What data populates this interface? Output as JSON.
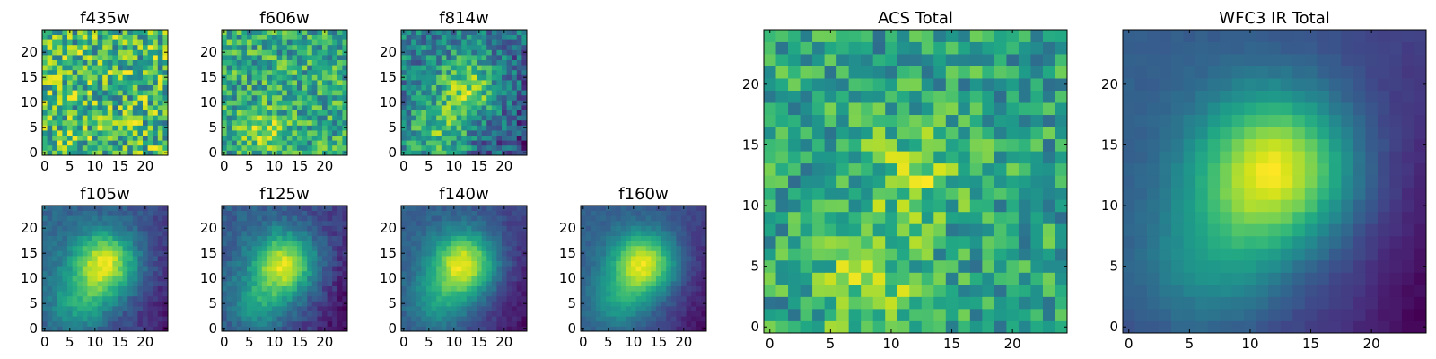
{
  "figure": {
    "colormap": "viridis",
    "grid": false
  },
  "chart_data": [
    {
      "type": "heatmap",
      "title": "f435w",
      "grid_size": 25,
      "xticks": [
        0,
        5,
        10,
        15,
        20
      ],
      "yticks": [
        0,
        5,
        10,
        15,
        20
      ],
      "xlim": [
        0,
        25
      ],
      "ylim": [
        0,
        25
      ],
      "style": "noise",
      "centers": [],
      "noise": 1.0
    },
    {
      "type": "heatmap",
      "title": "f606w",
      "grid_size": 25,
      "xticks": [
        0,
        5,
        10,
        15,
        20
      ],
      "yticks": [
        0,
        5,
        10,
        15,
        20
      ],
      "xlim": [
        0,
        25
      ],
      "ylim": [
        0,
        25
      ],
      "style": "noise",
      "centers": [
        [
          8,
          4,
          0.35
        ]
      ],
      "noise": 0.9
    },
    {
      "type": "heatmap",
      "title": "f814w",
      "grid_size": 25,
      "xticks": [
        0,
        5,
        10,
        15,
        20
      ],
      "yticks": [
        0,
        5,
        10,
        15,
        20
      ],
      "xlim": [
        0,
        25
      ],
      "ylim": [
        0,
        25
      ],
      "style": "blob",
      "centers": [
        [
          13,
          13,
          0.6
        ],
        [
          7,
          4,
          0.45
        ]
      ],
      "noise": 0.7
    },
    {
      "type": "heatmap",
      "title": "f105w",
      "grid_size": 25,
      "xticks": [
        0,
        5,
        10,
        15,
        20
      ],
      "yticks": [
        0,
        5,
        10,
        15,
        20
      ],
      "xlim": [
        0,
        25
      ],
      "ylim": [
        0,
        25
      ],
      "style": "blob",
      "centers": [
        [
          12,
          13,
          1.0
        ],
        [
          7,
          5,
          0.45
        ]
      ],
      "noise": 0.2
    },
    {
      "type": "heatmap",
      "title": "f125w",
      "grid_size": 25,
      "xticks": [
        0,
        5,
        10,
        15,
        20
      ],
      "yticks": [
        0,
        5,
        10,
        15,
        20
      ],
      "xlim": [
        0,
        25
      ],
      "ylim": [
        0,
        25
      ],
      "style": "blob",
      "centers": [
        [
          12,
          13,
          1.0
        ],
        [
          7,
          5,
          0.45
        ]
      ],
      "noise": 0.22
    },
    {
      "type": "heatmap",
      "title": "f140w",
      "grid_size": 25,
      "xticks": [
        0,
        5,
        10,
        15,
        20
      ],
      "yticks": [
        0,
        5,
        10,
        15,
        20
      ],
      "xlim": [
        0,
        25
      ],
      "ylim": [
        0,
        25
      ],
      "style": "blob",
      "centers": [
        [
          12,
          13,
          1.0
        ],
        [
          7,
          5,
          0.4
        ]
      ],
      "noise": 0.15
    },
    {
      "type": "heatmap",
      "title": "f160w",
      "grid_size": 25,
      "xticks": [
        0,
        5,
        10,
        15,
        20
      ],
      "yticks": [
        0,
        5,
        10,
        15,
        20
      ],
      "xlim": [
        0,
        25
      ],
      "ylim": [
        0,
        25
      ],
      "style": "blob",
      "centers": [
        [
          12,
          13,
          1.0
        ],
        [
          7,
          5,
          0.4
        ]
      ],
      "noise": 0.12
    },
    {
      "type": "heatmap",
      "title": "ACS Total",
      "grid_size": 25,
      "xticks": [
        0,
        5,
        10,
        15,
        20
      ],
      "yticks": [
        0,
        5,
        10,
        15,
        20
      ],
      "xlim": [
        0,
        25
      ],
      "ylim": [
        0,
        25
      ],
      "style": "noise",
      "centers": [
        [
          12,
          13,
          0.35
        ],
        [
          8,
          4,
          0.4
        ]
      ],
      "noise": 0.8
    },
    {
      "type": "heatmap",
      "title": "WFC3 IR Total",
      "grid_size": 25,
      "xticks": [
        0,
        5,
        10,
        15,
        20
      ],
      "yticks": [
        0,
        5,
        10,
        15,
        20
      ],
      "xlim": [
        0,
        25
      ],
      "ylim": [
        0,
        25
      ],
      "style": "blob",
      "centers": [
        [
          12,
          13,
          1.0
        ],
        [
          7,
          5,
          0.35
        ]
      ],
      "noise": 0.05
    }
  ]
}
